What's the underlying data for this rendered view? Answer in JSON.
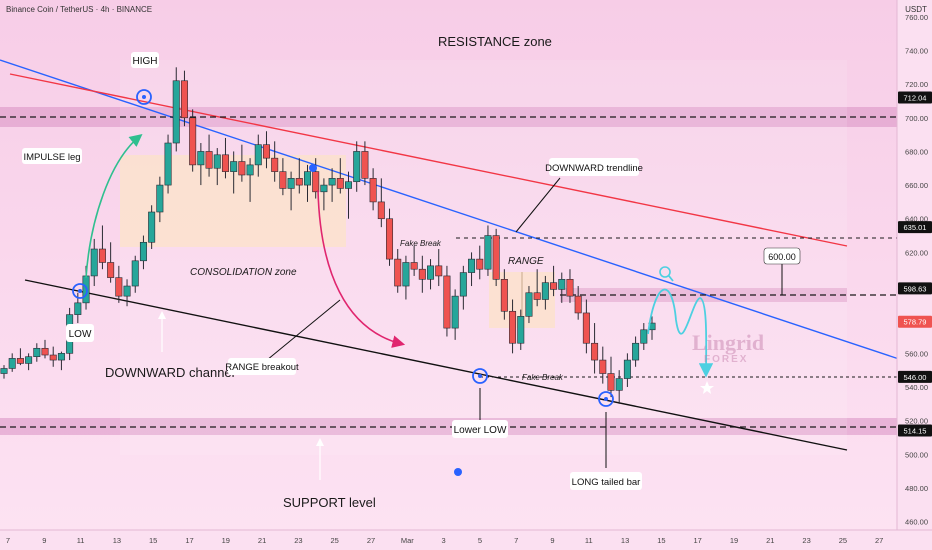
{
  "header": {
    "symbol": "Binance Coin / TetherUS · 4h · BINANCE",
    "currency": "USDT"
  },
  "watermark": {
    "brand": "Lingrid",
    "sub": "FOREX"
  },
  "colors": {
    "bg_top": "#f7cde7",
    "bg_bottom": "#fde3f3",
    "up": "#26a69a",
    "down": "#ef5350",
    "candle": "#2a2a33",
    "blue_line": "#2962ff",
    "red_line": "#f23645",
    "zone": "#d98fc2",
    "cyan": "#4dd0e1",
    "price_badge": "#111111"
  },
  "chart_data": {
    "type": "candlestick",
    "y_axis": {
      "min": 455,
      "max": 770,
      "ticks": [
        460,
        480,
        500,
        520,
        540,
        560,
        580,
        600,
        620,
        640,
        660,
        680,
        700,
        720,
        740,
        760
      ]
    },
    "x_axis": {
      "ticks": [
        "7",
        "9",
        "11",
        "13",
        "15",
        "17",
        "19",
        "21",
        "23",
        "25",
        "27",
        "Mar",
        "3",
        "5",
        "7",
        "9",
        "11",
        "13",
        "15",
        "17",
        "19",
        "21",
        "23",
        "25",
        "27"
      ]
    },
    "price_tags": [
      {
        "value": 712.04,
        "label": "712.04",
        "style": "dark"
      },
      {
        "value": 635.01,
        "label": "635.01",
        "style": "dark"
      },
      {
        "value": 598.63,
        "label": "598.63",
        "style": "dark"
      },
      {
        "value": 578.79,
        "label": "578.79",
        "style": "red"
      },
      {
        "value": 546.0,
        "label": "546.00",
        "style": "dark"
      },
      {
        "value": 514.15,
        "label": "514.15",
        "style": "dark"
      }
    ],
    "candles": [
      [
        548,
        553,
        545,
        551
      ],
      [
        551,
        560,
        549,
        557
      ],
      [
        557,
        563,
        553,
        554
      ],
      [
        554,
        560,
        550,
        558
      ],
      [
        558,
        566,
        555,
        563
      ],
      [
        563,
        568,
        557,
        559
      ],
      [
        559,
        564,
        552,
        556
      ],
      [
        556,
        561,
        550,
        560
      ],
      [
        560,
        587,
        556,
        583
      ],
      [
        583,
        596,
        578,
        590
      ],
      [
        590,
        612,
        586,
        606
      ],
      [
        606,
        628,
        600,
        622
      ],
      [
        622,
        636,
        610,
        614
      ],
      [
        614,
        626,
        602,
        605
      ],
      [
        605,
        612,
        590,
        594
      ],
      [
        594,
        604,
        588,
        600
      ],
      [
        600,
        618,
        596,
        615
      ],
      [
        615,
        630,
        610,
        626
      ],
      [
        626,
        648,
        622,
        644
      ],
      [
        644,
        665,
        638,
        660
      ],
      [
        660,
        690,
        655,
        685
      ],
      [
        685,
        730,
        680,
        722
      ],
      [
        722,
        728,
        695,
        700
      ],
      [
        700,
        705,
        668,
        672
      ],
      [
        672,
        685,
        660,
        680
      ],
      [
        680,
        690,
        665,
        670
      ],
      [
        670,
        682,
        660,
        678
      ],
      [
        678,
        688,
        664,
        668
      ],
      [
        668,
        680,
        655,
        674
      ],
      [
        674,
        684,
        662,
        666
      ],
      [
        666,
        676,
        650,
        672
      ],
      [
        672,
        690,
        665,
        684
      ],
      [
        684,
        692,
        670,
        676
      ],
      [
        676,
        686,
        662,
        668
      ],
      [
        668,
        676,
        654,
        658
      ],
      [
        658,
        668,
        645,
        664
      ],
      [
        664,
        676,
        655,
        660
      ],
      [
        660,
        672,
        650,
        668
      ],
      [
        668,
        676,
        652,
        656
      ],
      [
        656,
        664,
        645,
        660
      ],
      [
        660,
        670,
        650,
        664
      ],
      [
        664,
        676,
        655,
        658
      ],
      [
        658,
        668,
        640,
        662
      ],
      [
        662,
        686,
        656,
        680
      ],
      [
        680,
        686,
        660,
        664
      ],
      [
        664,
        670,
        645,
        650
      ],
      [
        650,
        664,
        635,
        640
      ],
      [
        640,
        646,
        612,
        616
      ],
      [
        616,
        622,
        596,
        600
      ],
      [
        600,
        618,
        592,
        614
      ],
      [
        614,
        624,
        606,
        610
      ],
      [
        610,
        618,
        596,
        604
      ],
      [
        604,
        616,
        598,
        612
      ],
      [
        612,
        622,
        600,
        606
      ],
      [
        606,
        612,
        570,
        575
      ],
      [
        575,
        598,
        568,
        594
      ],
      [
        594,
        612,
        586,
        608
      ],
      [
        608,
        620,
        600,
        616
      ],
      [
        616,
        624,
        604,
        610
      ],
      [
        610,
        636,
        606,
        630
      ],
      [
        630,
        634,
        600,
        604
      ],
      [
        604,
        610,
        580,
        585
      ],
      [
        585,
        592,
        560,
        566
      ],
      [
        566,
        586,
        562,
        582
      ],
      [
        582,
        600,
        578,
        596
      ],
      [
        596,
        610,
        588,
        592
      ],
      [
        592,
        606,
        586,
        602
      ],
      [
        602,
        612,
        594,
        598
      ],
      [
        598,
        608,
        590,
        604
      ],
      [
        604,
        610,
        590,
        594
      ],
      [
        594,
        600,
        580,
        584
      ],
      [
        584,
        592,
        560,
        566
      ],
      [
        566,
        578,
        548,
        556
      ],
      [
        556,
        564,
        542,
        548
      ],
      [
        548,
        558,
        534,
        538
      ],
      [
        538,
        550,
        530,
        545
      ],
      [
        545,
        560,
        540,
        556
      ],
      [
        556,
        570,
        552,
        566
      ],
      [
        566,
        578,
        562,
        574
      ],
      [
        574,
        582,
        568,
        578
      ]
    ],
    "levels": [
      {
        "name": "RESISTANCE zone",
        "low": 706,
        "high": 718
      },
      {
        "name": "RANGE zone",
        "low": 592,
        "high": 603
      },
      {
        "name": "SUPPORT level",
        "low": 509,
        "high": 520
      }
    ],
    "annotations": {
      "resistance": "RESISTANCE zone",
      "high": "HIGH",
      "impulse": "IMPULSE leg",
      "consolidation": "CONSOLIDATION zone",
      "downward_trendline": "DOWNWARD trendline",
      "fake_break_1": "Fake Break",
      "range": "RANGE",
      "fake_break_2": "Fake Break",
      "target": "600.00",
      "low": "LOW",
      "downward_channel": "DOWNWARD channel",
      "range_breakout": "RANGE breakout",
      "lower_low": "Lower LOW",
      "long_tailed_bar": "LONG tailed bar",
      "support": "SUPPORT level"
    }
  }
}
